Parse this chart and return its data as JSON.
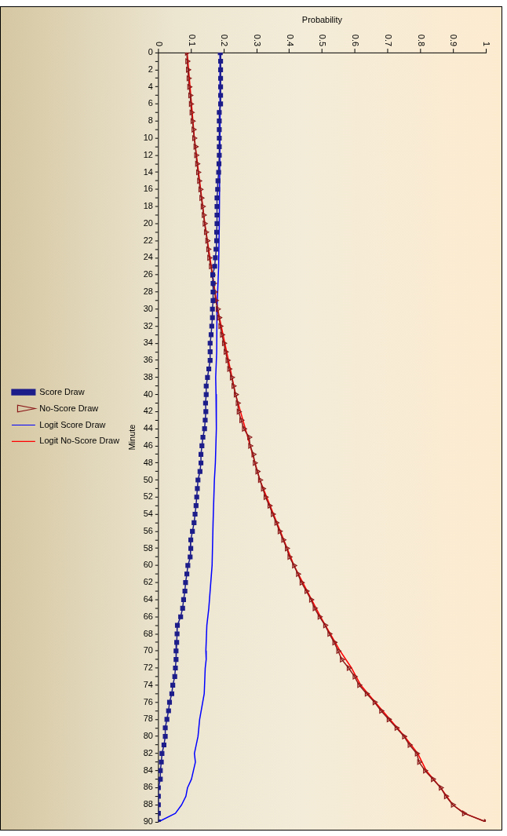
{
  "chart_data": {
    "type": "line",
    "xlabel": "Probability",
    "ylabel": "Minute",
    "xlim": [
      0,
      1
    ],
    "xticks": [
      0,
      0.1,
      0.2,
      0.3,
      0.4,
      0.5,
      0.6,
      0.7,
      0.8,
      0.9,
      1
    ],
    "ylim": [
      90,
      0
    ],
    "yticks": [
      0,
      {
        "value": 1,
        "label": null
      },
      2,
      {
        "value": 3,
        "label": null
      },
      4,
      {
        "value": 5,
        "label": null
      },
      6,
      {
        "value": 7,
        "label": null
      },
      8,
      {
        "value": 9,
        "label": null
      },
      10,
      {
        "value": 11,
        "label": null
      },
      12,
      {
        "value": 13,
        "label": null
      },
      14,
      {
        "value": 15,
        "label": null
      },
      16,
      {
        "value": 17,
        "label": null
      },
      18,
      {
        "value": 19,
        "label": null
      },
      20,
      {
        "value": 21,
        "label": null
      },
      22,
      {
        "value": 23,
        "label": null
      },
      24,
      {
        "value": 25,
        "label": null
      },
      26,
      {
        "value": 27,
        "label": null
      },
      28,
      {
        "value": 29,
        "label": null
      },
      30,
      {
        "value": 31,
        "label": null
      },
      32,
      {
        "value": 33,
        "label": null
      },
      34,
      {
        "value": 35,
        "label": null
      },
      36,
      {
        "value": 37,
        "label": null
      },
      38,
      {
        "value": 39,
        "label": null
      },
      40,
      {
        "value": 41,
        "label": null
      },
      42,
      {
        "value": 43,
        "label": null
      },
      44,
      {
        "value": 45,
        "label": null
      },
      46,
      {
        "value": 47,
        "label": null
      },
      48,
      {
        "value": 49,
        "label": null
      },
      50,
      {
        "value": 51,
        "label": null
      },
      52,
      {
        "value": 53,
        "label": null
      },
      54,
      {
        "value": 55,
        "label": null
      },
      56,
      {
        "value": 57,
        "label": null
      },
      58,
      {
        "value": 59,
        "label": null
      },
      60,
      {
        "value": 61,
        "label": null
      },
      62,
      {
        "value": 63,
        "label": null
      },
      64,
      {
        "value": 65,
        "label": null
      },
      66,
      {
        "value": 67,
        "label": null
      },
      68,
      {
        "value": 69,
        "label": null
      },
      70,
      {
        "value": 71,
        "label": null
      },
      72,
      {
        "value": 73,
        "label": null
      },
      74,
      {
        "value": 75,
        "label": null
      },
      76,
      {
        "value": 77,
        "label": null
      },
      78,
      {
        "value": 79,
        "label": null
      },
      80,
      {
        "value": 81,
        "label": null
      },
      82,
      {
        "value": 83,
        "label": null
      },
      84,
      {
        "value": 85,
        "label": null
      },
      86,
      {
        "value": 87,
        "label": null
      },
      88,
      {
        "value": 89,
        "label": null
      },
      90
    ],
    "grid": false,
    "legend": "left",
    "line_style": "solid",
    "series": [
      {
        "name": "Score Draw",
        "color": "#1c1c8a",
        "marker": "square",
        "x": [
          0.189,
          0.19,
          0.19,
          0.19,
          0.19,
          0.19,
          0.19,
          0.186,
          0.186,
          0.186,
          0.186,
          0.186,
          0.186,
          0.185,
          0.184,
          0.182,
          0.181,
          0.179,
          0.179,
          0.179,
          0.179,
          0.178,
          0.178,
          0.176,
          0.174,
          0.172,
          0.166,
          0.167,
          0.167,
          0.167,
          0.165,
          0.165,
          0.163,
          0.161,
          0.158,
          0.158,
          0.158,
          0.154,
          0.15,
          0.146,
          0.146,
          0.144,
          0.145,
          0.143,
          0.141,
          0.136,
          0.133,
          0.13,
          0.13,
          0.127,
          0.121,
          0.119,
          0.117,
          0.115,
          0.112,
          0.109,
          0.104,
          0.099,
          0.099,
          0.097,
          0.09,
          0.087,
          0.083,
          0.081,
          0.077,
          0.074,
          0.068,
          0.058,
          0.057,
          0.056,
          0.054,
          0.054,
          0.052,
          0.05,
          0.044,
          0.041,
          0.034,
          0.031,
          0.026,
          0.021,
          0.021,
          0.017,
          0.011,
          0.009,
          0.006,
          0.006,
          0,
          0,
          0,
          0,
          0
        ],
        "values": [
          0,
          1,
          2,
          3,
          4,
          5,
          6,
          7,
          8,
          9,
          10,
          11,
          12,
          13,
          14,
          15,
          16,
          17,
          18,
          19,
          20,
          21,
          22,
          23,
          24,
          25,
          26,
          27,
          28,
          29,
          30,
          31,
          32,
          33,
          34,
          35,
          36,
          37,
          38,
          39,
          40,
          41,
          42,
          43,
          44,
          45,
          46,
          47,
          48,
          49,
          50,
          51,
          52,
          53,
          54,
          55,
          56,
          57,
          58,
          59,
          60,
          61,
          62,
          63,
          64,
          65,
          66,
          67,
          68,
          69,
          70,
          71,
          72,
          73,
          74,
          75,
          76,
          77,
          78,
          79,
          80,
          81,
          82,
          83,
          84,
          85,
          86,
          87,
          88,
          89,
          90
        ]
      },
      {
        "name": "No-Score Draw",
        "color": "#8b1a1a",
        "marker": "triangle",
        "x": [
          0.087,
          0.088,
          0.09,
          0.092,
          0.094,
          0.097,
          0.099,
          0.101,
          0.104,
          0.107,
          0.109,
          0.113,
          0.115,
          0.118,
          0.121,
          0.124,
          0.128,
          0.131,
          0.135,
          0.138,
          0.141,
          0.145,
          0.149,
          0.152,
          0.155,
          0.16,
          0.165,
          0.169,
          0.172,
          0.175,
          0.181,
          0.185,
          0.189,
          0.194,
          0.2,
          0.205,
          0.211,
          0.216,
          0.224,
          0.229,
          0.236,
          0.242,
          0.245,
          0.253,
          0.261,
          0.277,
          0.28,
          0.29,
          0.294,
          0.302,
          0.31,
          0.319,
          0.327,
          0.339,
          0.349,
          0.36,
          0.37,
          0.381,
          0.392,
          0.4,
          0.414,
          0.426,
          0.437,
          0.452,
          0.466,
          0.477,
          0.492,
          0.509,
          0.522,
          0.537,
          0.549,
          0.56,
          0.581,
          0.599,
          0.613,
          0.636,
          0.66,
          0.68,
          0.703,
          0.727,
          0.75,
          0.767,
          0.789,
          0.796,
          0.814,
          0.838,
          0.862,
          0.878,
          0.899,
          0.933,
          1
        ],
        "values": [
          0,
          1,
          2,
          3,
          4,
          5,
          6,
          7,
          8,
          9,
          10,
          11,
          12,
          13,
          14,
          15,
          16,
          17,
          18,
          19,
          20,
          21,
          22,
          23,
          24,
          25,
          26,
          27,
          28,
          29,
          30,
          31,
          32,
          33,
          34,
          35,
          36,
          37,
          38,
          39,
          40,
          41,
          42,
          43,
          44,
          45,
          46,
          47,
          48,
          49,
          50,
          51,
          52,
          53,
          54,
          55,
          56,
          57,
          58,
          59,
          60,
          61,
          62,
          63,
          64,
          65,
          66,
          67,
          68,
          69,
          70,
          71,
          72,
          73,
          74,
          75,
          76,
          77,
          78,
          79,
          80,
          81,
          82,
          83,
          84,
          85,
          86,
          87,
          88,
          89,
          90
        ]
      },
      {
        "name": "Logit Score Draw",
        "color": "#0000ff",
        "marker": "none",
        "x": [
          0.19,
          0.188,
          0.186,
          0.184,
          0.179,
          0.178,
          0.175,
          0.176,
          0.177,
          0.174,
          0.171,
          0.167,
          0.164,
          0.154,
          0.148,
          0.145,
          0.146,
          0.143,
          0.14,
          0.126,
          0.121,
          0.11,
          0.113,
          0.101,
          0.089,
          0.084,
          0.071,
          0.052,
          0
        ],
        "values": [
          0,
          10,
          20,
          25,
          30,
          35,
          38,
          40,
          44,
          48,
          50,
          55,
          60,
          65,
          67,
          70,
          71,
          72,
          75,
          78,
          80,
          82,
          83,
          85,
          86,
          87,
          88,
          89,
          90
        ]
      },
      {
        "name": "Logit No-Score Draw",
        "color": "#ff0000",
        "marker": "none",
        "x": [
          0.088,
          0.11,
          0.142,
          0.181,
          0.236,
          0.31,
          0.414,
          0.495,
          0.555,
          0.59,
          0.618,
          0.662,
          0.752,
          0.792,
          0.818,
          0.862,
          0.899,
          0.935,
          1
        ],
        "values": [
          0,
          10,
          20,
          30,
          40,
          50,
          60,
          66,
          70,
          72,
          74,
          76,
          80,
          82,
          84,
          86,
          88,
          89,
          90
        ]
      }
    ]
  }
}
